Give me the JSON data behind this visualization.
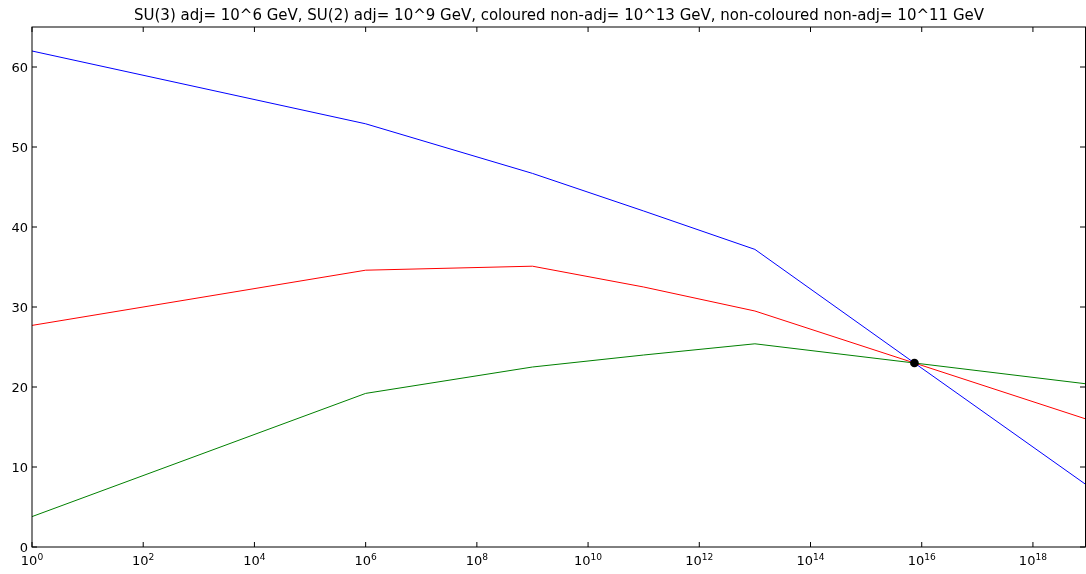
{
  "chart_data": {
    "type": "line",
    "title": "SU(3) adj= 10^6 GeV, SU(2) adj= 10^9 GeV, coloured non-adj= 10^13 GeV, non-coloured non-adj= 10^11 GeV",
    "log": "x",
    "grid": false,
    "xlim": [
      1,
      9e+18
    ],
    "ylim": [
      0,
      65
    ],
    "xticks": [
      {
        "value": 1,
        "label": "10$^{0}$"
      },
      {
        "value": 100.0,
        "label": "10$^{2}$"
      },
      {
        "value": 10000.0,
        "label": "10$^{4}$"
      },
      {
        "value": 1000000.0,
        "label": "10$^{6}$"
      },
      {
        "value": 100000000.0,
        "label": "10$^{8}$"
      },
      {
        "value": 10000000000.0,
        "label": "10$^{10}$"
      },
      {
        "value": 1000000000000.0,
        "label": "10$^{12}$"
      },
      {
        "value": 100000000000000.0,
        "label": "10$^{14}$"
      },
      {
        "value": 1e+16,
        "label": "10$^{16}$"
      },
      {
        "value": 1e+18,
        "label": "10$^{18}$"
      }
    ],
    "yticks": [
      0,
      10,
      20,
      30,
      40,
      50,
      60
    ],
    "series": [
      {
        "color": "#0000ff",
        "x": [
          1,
          1000000.0,
          1000000000.0,
          100000000000.0,
          10000000000000.0,
          7400000000000000.0,
          9e+18
        ],
        "values": [
          62.0,
          52.9,
          46.7,
          42.0,
          37.2,
          23.0,
          7.8
        ]
      },
      {
        "color": "#ff0000",
        "x": [
          1,
          1000000.0,
          1000000000.0,
          100000000000.0,
          10000000000000.0,
          7400000000000000.0,
          9e+18
        ],
        "values": [
          27.7,
          34.6,
          35.1,
          32.5,
          29.5,
          23.0,
          16.0
        ]
      },
      {
        "color": "#008000",
        "x": [
          1,
          1000000.0,
          1000000000.0,
          100000000000.0,
          10000000000000.0,
          7400000000000000.0,
          9e+18
        ],
        "values": [
          3.8,
          19.2,
          22.5,
          24.0,
          25.4,
          23.0,
          20.4
        ]
      },
      {
        "type": "scatter",
        "color": "#000000",
        "marker": "circle",
        "x": [
          7400000000000000.0
        ],
        "values": [
          23.0
        ]
      }
    ]
  }
}
